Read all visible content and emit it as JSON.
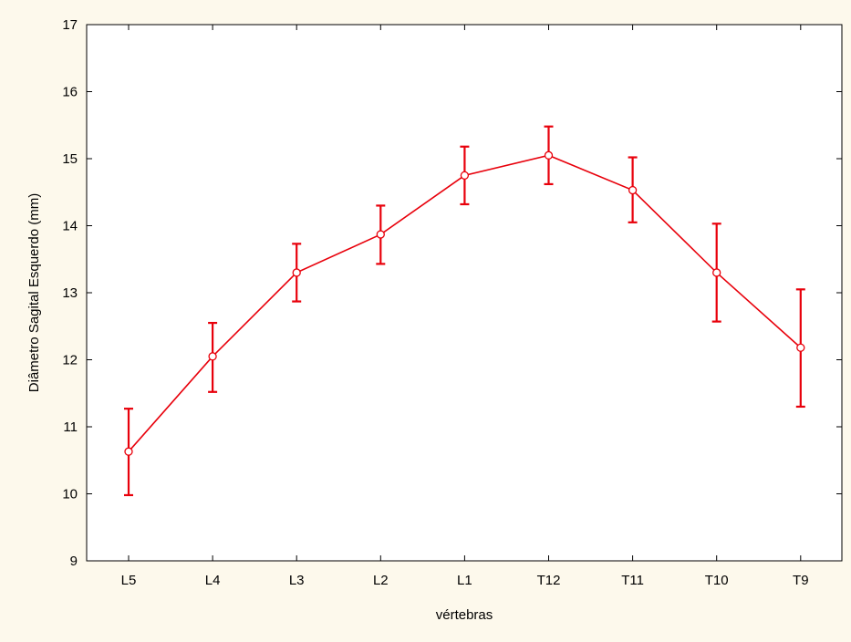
{
  "chart_data": {
    "type": "line",
    "title": "",
    "xlabel": "vértebras",
    "ylabel": "Diâmetro Sagital Esquerdo (mm)",
    "ylim": [
      9,
      17
    ],
    "yticks": [
      9,
      10,
      11,
      12,
      13,
      14,
      15,
      16,
      17
    ],
    "grid": false,
    "legend": "none",
    "categories": [
      "L5",
      "L4",
      "L3",
      "L2",
      "L1",
      "T12",
      "T11",
      "T10",
      "T9"
    ],
    "series": [
      {
        "color": "#e8000b",
        "values": [
          10.63,
          12.05,
          13.3,
          13.87,
          14.75,
          15.05,
          14.53,
          13.3,
          12.18
        ],
        "error_low": [
          9.98,
          11.52,
          12.87,
          13.43,
          14.32,
          14.62,
          14.05,
          12.57,
          11.3
        ],
        "error_high": [
          11.27,
          12.55,
          13.73,
          14.3,
          15.18,
          15.48,
          15.02,
          14.03,
          13.05
        ]
      }
    ]
  }
}
